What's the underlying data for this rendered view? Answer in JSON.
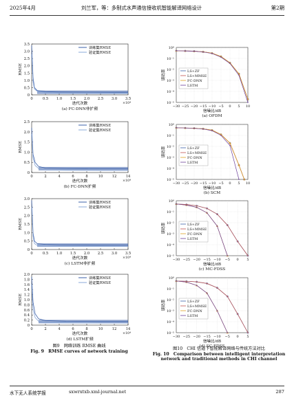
{
  "header": {
    "left": "2025年4月",
    "center": "刘兰军，等：多制式水声通信接收机智能解译网络设计",
    "right": "第2期"
  },
  "footer": {
    "left": "水下无人系统学报",
    "center": "sxwrxtxb.xml-journal.net",
    "page": "287"
  },
  "fig9": {
    "caption_cn": "图9　网络训练 RMSE 曲线",
    "caption_en": "Fig. 9　RMSE curves of network training",
    "panels": [
      {
        "sub": "(a) FC-DNN非扩频",
        "ylabel": "RMSE",
        "xlabel": "迭代次数",
        "xexp": "×10⁴",
        "yticks": [
          "0",
          "0.5",
          "1.0",
          "1.5",
          "2.0",
          "2.5",
          "3.0",
          "3.5"
        ],
        "xticks": [
          "0",
          "0.5",
          "1.0",
          "1.5",
          "2.0",
          "2.5",
          "3.0",
          "3.5"
        ],
        "legend": [
          "训练集RMSE",
          "验证集RMSE"
        ]
      },
      {
        "sub": "(b) FC-DNN扩频",
        "ylabel": "RMSE",
        "xlabel": "迭代次数",
        "xexp": "×10⁴",
        "yticks": [
          "0",
          "0.5",
          "1.0",
          "1.5",
          "2.0",
          "2.5"
        ],
        "xticks": [
          "0",
          "2",
          "4",
          "6",
          "8",
          "10",
          "12",
          "14"
        ],
        "legend": [
          "训练集RMSE",
          "验证集RMSE"
        ]
      },
      {
        "sub": "(c) LSTM非扩频",
        "ylabel": "RMSE",
        "xlabel": "迭代次数",
        "xexp": "×10⁴",
        "yticks": [
          "0",
          "0.5",
          "1.0",
          "1.5",
          "2.0",
          "2.5",
          "3.0"
        ],
        "xticks": [
          "0",
          "0.5",
          "1.0",
          "1.5",
          "2.0",
          "2.5",
          "3.0",
          "3.5"
        ],
        "legend": [
          "训练集RMSE",
          "验证集RMSE"
        ]
      },
      {
        "sub": "(d) LSTM扩频",
        "ylabel": "RMSE",
        "xlabel": "迭代次数",
        "xexp": "×10⁴",
        "yticks": [
          "0",
          "0.2",
          "0.4",
          "0.6",
          "0.8",
          "1.0",
          "1.2",
          "1.4",
          "1.6",
          "1.8",
          "2.0"
        ],
        "xticks": [
          "0",
          "2",
          "4",
          "6",
          "8",
          "10",
          "12",
          "14"
        ],
        "legend": [
          "训练集RMSE",
          "验证集RMSE"
        ]
      }
    ]
  },
  "fig10": {
    "caption_cn": "图10　CHI 信道下智能解译网络与传统方法对比",
    "caption_en1": "Fig. 10　Comparison between intelligent interpretation",
    "caption_en2": "network and traditional methods in CHI channel",
    "panels": [
      {
        "sub": "(a) OFDM",
        "ylabel": "误码率",
        "xlabel": "信噪比/dB",
        "yticks": [
          "10⁰",
          "10⁻¹",
          "10⁻²",
          "10⁻³",
          "10⁻⁴",
          "10⁻⁵"
        ],
        "xticks": [
          "−30",
          "−25",
          "−20",
          "−15",
          "−10",
          "−5",
          "0",
          "5",
          "10"
        ],
        "legend": [
          "LS+ZF",
          "LS+MMSE",
          "FC-DNN",
          "LSTM"
        ]
      },
      {
        "sub": "(b) SCM",
        "ylabel": "误码率",
        "xlabel": "信噪比/dB",
        "yticks": [
          "10⁰",
          "10⁻¹",
          "10⁻²",
          "10⁻³",
          "10⁻⁴",
          "10⁻⁵"
        ],
        "xticks": [
          "−30",
          "−25",
          "−20",
          "−15",
          "−10",
          "−5",
          "0",
          "5",
          "10"
        ],
        "legend": [
          "LS+ZF",
          "LS+MMSE",
          "FC-DNN",
          "LSTM"
        ]
      },
      {
        "sub": "(c) MC-FDSS",
        "ylabel": "误码率",
        "xlabel": "信噪比/dB",
        "yticks": [
          "10⁰",
          "10⁻¹",
          "10⁻²",
          "10⁻³",
          "10⁻⁴",
          "10⁻⁵"
        ],
        "xticks": [
          "−30",
          "−25",
          "−20",
          "−15",
          "−10",
          "−5",
          "0",
          "5"
        ],
        "legend": [
          "LS+ZF",
          "LS+MMSE",
          "FC-DNN",
          "LSTM"
        ]
      },
      {
        "sub": "(d) SC-FDSS",
        "ylabel": "误码率",
        "xlabel": "信噪比/dB",
        "yticks": [
          "10⁰",
          "10⁻¹",
          "10⁻²",
          "10⁻³",
          "10⁻⁴",
          "10⁻⁵"
        ],
        "xticks": [
          "−30",
          "−25",
          "−20",
          "−15",
          "−10",
          "−5",
          "0",
          "5"
        ],
        "legend": [
          "LS+ZF",
          "LS+MMSE",
          "FC-DNN",
          "LSTM"
        ]
      }
    ]
  },
  "chart_data": [
    {
      "type": "line",
      "series": [
        {
          "name": "训练集RMSE",
          "x": [
            0,
            0.05,
            0.1,
            0.2,
            0.5,
            1,
            2,
            3,
            3.5
          ],
          "values": [
            3.4,
            1.2,
            0.5,
            0.3,
            0.22,
            0.2,
            0.19,
            0.18,
            0.18
          ]
        },
        {
          "name": "验证集RMSE",
          "x": [
            0,
            0.05,
            0.1,
            0.2,
            0.5,
            1,
            2,
            3,
            3.5
          ],
          "values": [
            2.8,
            0.9,
            0.4,
            0.25,
            0.15,
            0.13,
            0.12,
            0.11,
            0.11
          ]
        }
      ],
      "xlabel": "迭代次数",
      "ylabel": "RMSE",
      "xlim": [
        0,
        3.5
      ],
      "ylim": [
        0,
        3.5
      ]
    },
    {
      "type": "line",
      "series": [
        {
          "name": "训练集RMSE",
          "x": [
            0,
            0.2,
            0.5,
            1,
            2,
            5,
            10,
            14
          ],
          "values": [
            2.2,
            0.9,
            0.5,
            0.3,
            0.22,
            0.2,
            0.19,
            0.19
          ]
        },
        {
          "name": "验证集RMSE",
          "x": [
            0,
            0.2,
            0.5,
            1,
            2,
            5,
            10,
            14
          ],
          "values": [
            1.9,
            0.7,
            0.35,
            0.2,
            0.12,
            0.11,
            0.1,
            0.1
          ]
        }
      ],
      "xlabel": "迭代次数",
      "ylabel": "RMSE",
      "xlim": [
        0,
        14
      ],
      "ylim": [
        0,
        2.5
      ]
    },
    {
      "type": "line",
      "series": [
        {
          "name": "训练集RMSE",
          "x": [
            0,
            0.05,
            0.1,
            0.2,
            0.5,
            1,
            2,
            3,
            3.5
          ],
          "values": [
            2.9,
            1.0,
            0.5,
            0.35,
            0.3,
            0.28,
            0.27,
            0.26,
            0.26
          ]
        },
        {
          "name": "验证集RMSE",
          "x": [
            0,
            0.05,
            0.1,
            0.2,
            0.5,
            1,
            2,
            3,
            3.5
          ],
          "values": [
            2.5,
            0.8,
            0.35,
            0.25,
            0.2,
            0.19,
            0.18,
            0.18,
            0.18
          ]
        }
      ],
      "xlabel": "迭代次数",
      "ylabel": "RMSE",
      "xlim": [
        0,
        3.5
      ],
      "ylim": [
        0,
        3.0
      ]
    },
    {
      "type": "line",
      "series": [
        {
          "name": "训练集RMSE",
          "x": [
            0,
            0.2,
            0.5,
            1,
            2,
            5,
            10,
            14
          ],
          "values": [
            1.9,
            0.9,
            0.45,
            0.25,
            0.18,
            0.15,
            0.14,
            0.14
          ]
        },
        {
          "name": "验证集RMSE",
          "x": [
            0,
            0.2,
            0.5,
            1,
            2,
            5,
            10,
            14
          ],
          "values": [
            1.6,
            0.6,
            0.3,
            0.15,
            0.1,
            0.09,
            0.08,
            0.08
          ]
        }
      ],
      "xlabel": "迭代次数",
      "ylabel": "RMSE",
      "xlim": [
        0,
        14
      ],
      "ylim": [
        0,
        2.0
      ]
    },
    {
      "type": "line",
      "series": [
        {
          "name": "LS+ZF",
          "x": [
            -30,
            -25,
            -20,
            -15,
            -10,
            -5,
            0,
            5,
            10
          ],
          "values": [
            0.5,
            0.48,
            0.46,
            0.4,
            0.3,
            0.15,
            0.04,
            0.004,
            2e-05
          ]
        },
        {
          "name": "LS+MMSE",
          "x": [
            -30,
            -25,
            -20,
            -15,
            -10,
            -5,
            0,
            5,
            10
          ],
          "values": [
            0.5,
            0.48,
            0.46,
            0.4,
            0.3,
            0.15,
            0.04,
            0.004,
            2e-05
          ]
        },
        {
          "name": "FC-DNN",
          "x": [
            -30,
            -25,
            -20,
            -15,
            -10,
            -5,
            0,
            5,
            10
          ],
          "values": [
            0.5,
            0.48,
            0.45,
            0.4,
            0.3,
            0.15,
            0.04,
            0.004,
            2e-05
          ]
        },
        {
          "name": "LSTM",
          "x": [
            -30,
            -25,
            -20,
            -15,
            -10,
            -5,
            0,
            5,
            10
          ],
          "values": [
            0.5,
            0.48,
            0.45,
            0.38,
            0.28,
            0.13,
            0.035,
            0.003,
            1e-05
          ]
        }
      ],
      "xlabel": "信噪比/dB",
      "ylabel": "误码率",
      "xlim": [
        -30,
        10
      ]
    },
    {
      "type": "line",
      "series": [
        {
          "name": "LS+ZF",
          "x": [
            -30,
            -25,
            -20,
            -15,
            -10,
            -5,
            0,
            5,
            8
          ],
          "values": [
            0.5,
            0.47,
            0.45,
            0.4,
            0.3,
            0.12,
            0.02,
            0.0002,
            1e-05
          ]
        },
        {
          "name": "LS+MMSE",
          "x": [
            -30,
            -25,
            -20,
            -15,
            -10,
            -5,
            0,
            5,
            8
          ],
          "values": [
            0.5,
            0.47,
            0.45,
            0.4,
            0.3,
            0.12,
            0.02,
            0.0002,
            1e-05
          ]
        },
        {
          "name": "FC-DNN",
          "x": [
            -30,
            -25,
            -20,
            -15,
            -10,
            -5,
            0,
            5,
            8
          ],
          "values": [
            0.5,
            0.47,
            0.45,
            0.4,
            0.3,
            0.12,
            0.02,
            0.0002,
            1e-05
          ]
        },
        {
          "name": "LSTM",
          "x": [
            -30,
            -25,
            -20,
            -15,
            -10,
            -5,
            0,
            5
          ],
          "values": [
            0.5,
            0.47,
            0.44,
            0.38,
            0.27,
            0.1,
            0.012,
            1e-05
          ]
        }
      ],
      "xlabel": "信噪比/dB",
      "ylabel": "误码率",
      "xlim": [
        -30,
        10
      ]
    },
    {
      "type": "line",
      "series": [
        {
          "name": "LS+ZF",
          "x": [
            -30,
            -25,
            -20,
            -15,
            -10,
            -5,
            0,
            5
          ],
          "values": [
            0.5,
            0.45,
            0.35,
            0.2,
            0.06,
            0.006,
            0.0002,
            1e-05
          ]
        },
        {
          "name": "LS+MMSE",
          "x": [
            -30,
            -25,
            -20,
            -15,
            -10,
            -5,
            0,
            5
          ],
          "values": [
            0.5,
            0.45,
            0.35,
            0.2,
            0.06,
            0.006,
            0.0002,
            1e-05
          ]
        },
        {
          "name": "FC-DNN",
          "x": [
            -30,
            -25,
            -20,
            -15,
            -10,
            -5
          ],
          "values": [
            0.5,
            0.4,
            0.25,
            0.08,
            0.005,
            1e-05
          ]
        },
        {
          "name": "LSTM",
          "x": [
            -30,
            -25,
            -20,
            -15,
            -10,
            -5
          ],
          "values": [
            0.5,
            0.4,
            0.25,
            0.08,
            0.005,
            1e-05
          ]
        }
      ],
      "xlabel": "信噪比/dB",
      "ylabel": "误码率",
      "xlim": [
        -30,
        5
      ]
    },
    {
      "type": "line",
      "series": [
        {
          "name": "LS+ZF",
          "x": [
            -30,
            -25,
            -20,
            -15,
            -10,
            -5,
            0,
            5
          ],
          "values": [
            0.5,
            0.47,
            0.42,
            0.3,
            0.12,
            0.02,
            0.0005,
            1e-05
          ]
        },
        {
          "name": "LS+MMSE",
          "x": [
            -30,
            -25,
            -20,
            -15,
            -10,
            -5,
            0,
            5
          ],
          "values": [
            0.5,
            0.47,
            0.42,
            0.3,
            0.12,
            0.02,
            0.0005,
            1e-05
          ]
        },
        {
          "name": "FC-DNN",
          "x": [
            -30,
            -25,
            -20,
            -15,
            -10,
            -5
          ],
          "values": [
            0.5,
            0.4,
            0.2,
            0.04,
            0.001,
            1e-05
          ]
        },
        {
          "name": "LSTM",
          "x": [
            -30,
            -25,
            -20,
            -15,
            -10,
            -5
          ],
          "values": [
            0.5,
            0.4,
            0.2,
            0.04,
            0.001,
            1e-05
          ]
        }
      ],
      "xlabel": "信噪比/dB",
      "ylabel": "误码率",
      "xlim": [
        -30,
        5
      ]
    }
  ]
}
